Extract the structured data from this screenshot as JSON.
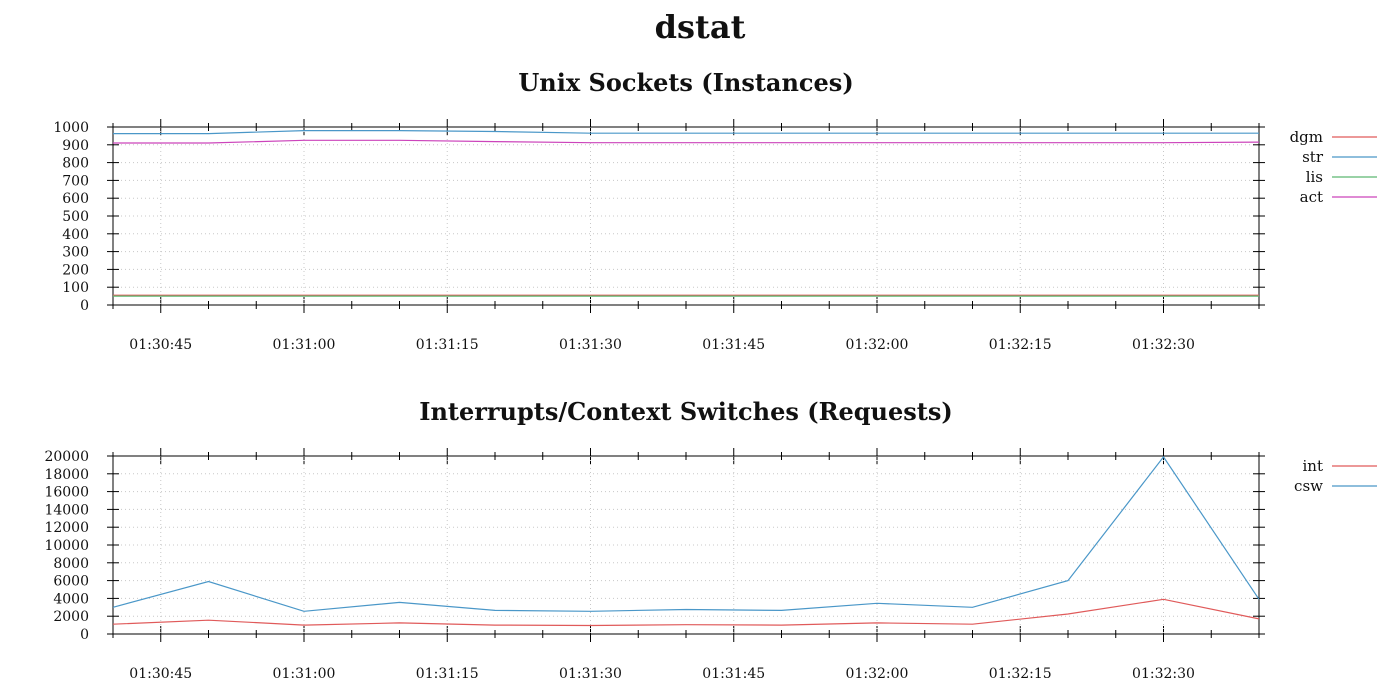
{
  "title": "dstat",
  "chart_data": [
    {
      "type": "line",
      "title": "Unix Sockets (Instances)",
      "xlabel": "",
      "ylabel": "",
      "x_ticks": [
        "01:30:45",
        "01:31:00",
        "01:31:15",
        "01:31:30",
        "01:31:45",
        "01:32:00",
        "01:32:15",
        "01:32:30"
      ],
      "x": [
        "01:30:40",
        "01:30:50",
        "01:31:00",
        "01:31:10",
        "01:31:20",
        "01:31:30",
        "01:31:40",
        "01:31:50",
        "01:32:00",
        "01:32:10",
        "01:32:20",
        "01:32:30",
        "01:32:40"
      ],
      "x_range": [
        "01:30:40",
        "01:32:40"
      ],
      "ylim": [
        0,
        1000
      ],
      "y_ticks": [
        0,
        100,
        200,
        300,
        400,
        500,
        600,
        700,
        800,
        900,
        1000
      ],
      "grid": true,
      "legend_position": "top-right, outside",
      "series": [
        {
          "name": "dgm",
          "color": "#e05a5a",
          "values": [
            55,
            55,
            55,
            55,
            55,
            55,
            55,
            55,
            55,
            55,
            55,
            55,
            55
          ]
        },
        {
          "name": "str",
          "color": "#4a97c8",
          "values": [
            963,
            963,
            980,
            980,
            975,
            965,
            965,
            965,
            965,
            965,
            965,
            965,
            965
          ]
        },
        {
          "name": "lis",
          "color": "#5cb870",
          "values": [
            50,
            50,
            50,
            50,
            50,
            50,
            50,
            50,
            50,
            50,
            50,
            50,
            50
          ]
        },
        {
          "name": "act",
          "color": "#cc44bb",
          "values": [
            910,
            910,
            925,
            925,
            918,
            912,
            912,
            912,
            912,
            912,
            912,
            912,
            915
          ]
        }
      ]
    },
    {
      "type": "line",
      "title": "Interrupts/Context Switches (Requests)",
      "xlabel": "",
      "ylabel": "",
      "x_ticks": [
        "01:30:45",
        "01:31:00",
        "01:31:15",
        "01:31:30",
        "01:31:45",
        "01:32:00",
        "01:32:15",
        "01:32:30"
      ],
      "x": [
        "01:30:40",
        "01:30:50",
        "01:31:00",
        "01:31:10",
        "01:31:20",
        "01:31:30",
        "01:31:40",
        "01:31:50",
        "01:32:00",
        "01:32:10",
        "01:32:20",
        "01:32:30",
        "01:32:40"
      ],
      "x_range": [
        "01:30:40",
        "01:32:40"
      ],
      "ylim": [
        0,
        20000
      ],
      "y_ticks": [
        0,
        2000,
        4000,
        6000,
        8000,
        10000,
        12000,
        14000,
        16000,
        18000,
        20000
      ],
      "grid": true,
      "legend_position": "top-right, outside",
      "series": [
        {
          "name": "int",
          "color": "#e05a5a",
          "values": [
            1100,
            1550,
            1000,
            1250,
            1000,
            950,
            1050,
            1000,
            1250,
            1100,
            2250,
            3900,
            1700
          ]
        },
        {
          "name": "csw",
          "color": "#4a97c8",
          "values": [
            3000,
            5900,
            2550,
            3550,
            2650,
            2550,
            2750,
            2650,
            3450,
            3000,
            6000,
            19900,
            3900
          ]
        }
      ]
    }
  ]
}
